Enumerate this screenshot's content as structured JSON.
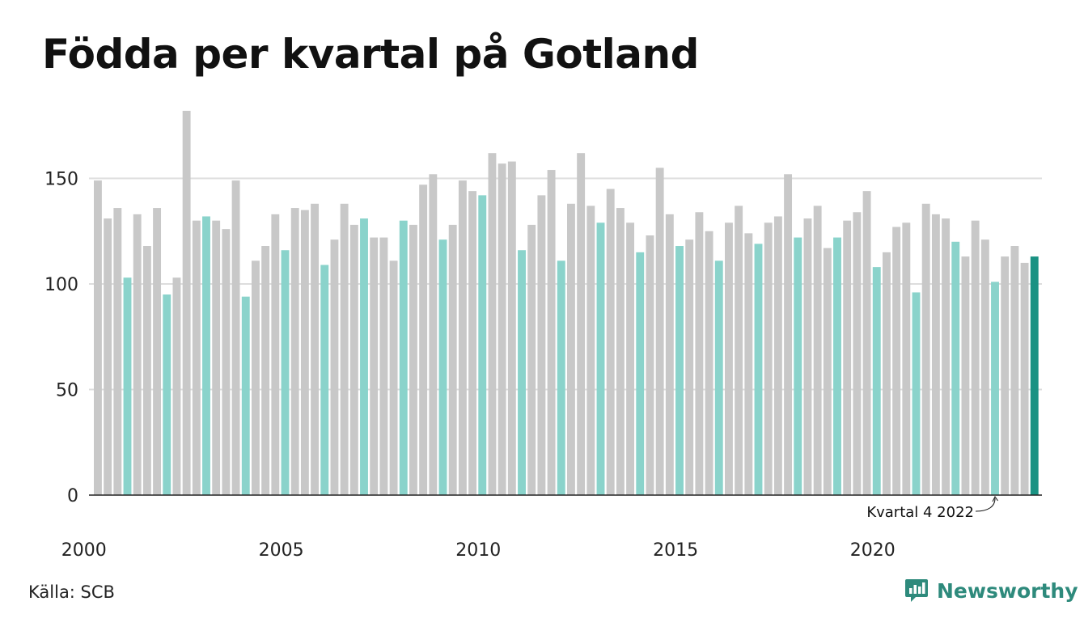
{
  "title": "Födda per kvartal på Gotland",
  "source": "Källa: SCB",
  "brand": "Newsworthy",
  "colors": {
    "q1": "#8ad3cb",
    "other": "#c8c8c8",
    "latest": "#1a9283",
    "grid": "#dddddd",
    "axis": "#222222"
  },
  "chart_data": {
    "type": "bar",
    "annotation": "Kvartal 4 2022",
    "x_ticks": [
      "2000",
      "2005",
      "2010",
      "2015",
      "2020"
    ],
    "y_ticks": [
      "0",
      "50",
      "100",
      "150"
    ],
    "ylim": [
      0,
      185
    ],
    "grid": true,
    "start_year": 2000,
    "start_quarter": 2,
    "values": [
      149,
      131,
      136,
      103,
      133,
      118,
      136,
      95,
      103,
      182,
      130,
      132,
      130,
      126,
      149,
      94,
      111,
      118,
      133,
      116,
      136,
      135,
      138,
      109,
      121,
      138,
      128,
      131,
      122,
      122,
      111,
      130,
      128,
      147,
      152,
      121,
      128,
      149,
      144,
      142,
      162,
      157,
      158,
      116,
      128,
      142,
      154,
      111,
      138,
      162,
      137,
      129,
      145,
      136,
      129,
      115,
      123,
      155,
      133,
      118,
      121,
      134,
      125,
      111,
      129,
      137,
      124,
      119,
      129,
      132,
      152,
      122,
      131,
      137,
      117,
      122,
      130,
      134,
      144,
      108,
      115,
      127,
      129,
      96,
      138,
      133,
      131,
      120,
      113,
      130,
      121,
      101,
      113,
      118,
      110,
      113
    ]
  }
}
